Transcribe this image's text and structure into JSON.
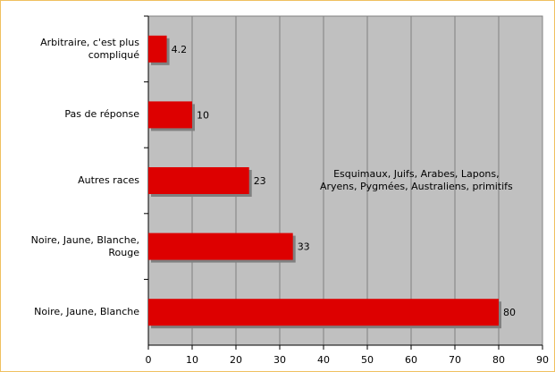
{
  "chart_data": {
    "type": "hbar",
    "categories": [
      "Arbitraire, c'est plus compliqué",
      "Pas de réponse",
      "Autres races",
      "Noire, Jaune, Blanche, Rouge",
      "Noire, Jaune, Blanche"
    ],
    "values": [
      4.2,
      10,
      23,
      33,
      80
    ],
    "color": "#dd0000",
    "xlim": [
      0,
      90
    ],
    "xticks": [
      0,
      10,
      20,
      30,
      40,
      50,
      60,
      70,
      80,
      90
    ],
    "grid": true,
    "annotation": [
      "Esquimaux, Juifs, Arabes, Lapons,",
      "Aryens, Pygmées, Australiens, primitifs"
    ]
  }
}
